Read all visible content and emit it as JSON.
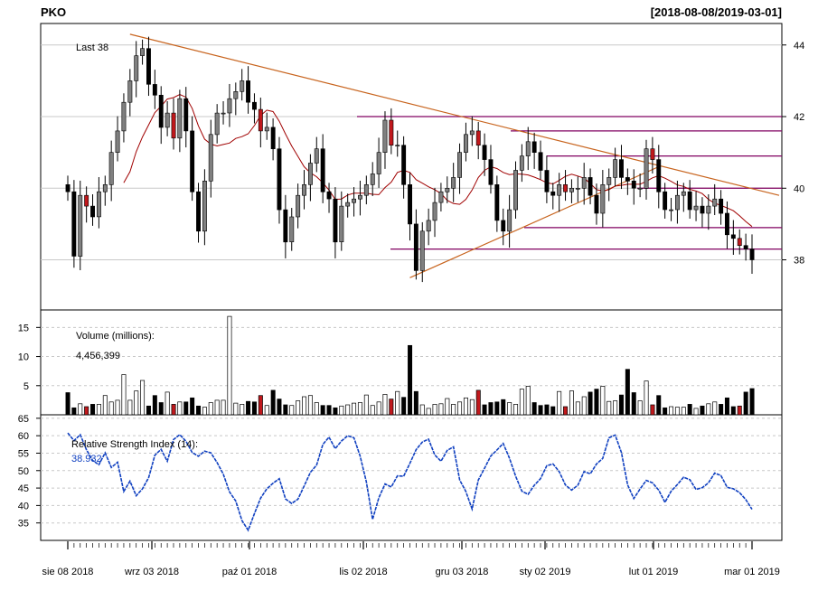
{
  "title": "PKO",
  "date_range": "[2018-08-08/2019-03-01]",
  "price_panel": {
    "last_label": "Last 38",
    "y_ticks": [
      38,
      40,
      42,
      44
    ],
    "ylim": [
      36.6,
      44.6
    ]
  },
  "volume_panel": {
    "label": "Volume (millions):",
    "value": "4,456,399",
    "y_ticks": [
      5,
      10,
      15
    ],
    "ylim": [
      0,
      18
    ]
  },
  "rsi_panel": {
    "label": "Relative Strength Index (14):",
    "value": "38.932",
    "y_ticks": [
      35,
      40,
      45,
      50,
      55,
      60,
      65
    ],
    "ylim": [
      30,
      66
    ]
  },
  "x_ticks": [
    "sie 08 2018",
    "wrz 03 2018",
    "paź 01 2018",
    "lis 02 2018",
    "gru 03 2018",
    "sty 02 2019",
    "lut 01 2019",
    "mar 01 2019"
  ],
  "colors": {
    "up": "#808080",
    "down": "#000000",
    "highlight": "#c0181c",
    "trendline": "#c8641e",
    "hline": "#800060",
    "sma": "#a00000",
    "rsi": "#1040c0",
    "grid": "#c8c8c8"
  },
  "chart_data": {
    "type": "candlestick",
    "series": [
      {
        "name": "price",
        "close": [
          39.9,
          38.1,
          39.8,
          39.5,
          39.2,
          39.9,
          40.1,
          41.0,
          41.6,
          42.4,
          43.0,
          43.7,
          43.9,
          42.9,
          42.6,
          41.7,
          42.1,
          41.4,
          42.5,
          41.6,
          39.9,
          38.8,
          40.2,
          41.5,
          42.1,
          42.1,
          42.5,
          42.7,
          43.0,
          42.4,
          42.2,
          41.6,
          41.7,
          41.1,
          39.4,
          38.5,
          39.2,
          39.8,
          40.1,
          40.7,
          41.1,
          39.9,
          39.7,
          38.5,
          39.5,
          39.6,
          39.7,
          39.8,
          40.1,
          40.4,
          41.0,
          41.9,
          41.2,
          41.2,
          40.1,
          39.0,
          37.7,
          38.8,
          39.1,
          39.6,
          39.9,
          40.0,
          40.3,
          41.0,
          41.5,
          41.6,
          41.2,
          40.8,
          40.1,
          39.1,
          38.8,
          39.4,
          40.5,
          40.9,
          41.3,
          41.0,
          40.5,
          39.9,
          39.8,
          40.1,
          39.9,
          40.0,
          40.0,
          40.3,
          39.8,
          39.3,
          40.1,
          40.3,
          40.8,
          40.3,
          40.2,
          40.0,
          40.0,
          41.1,
          40.8,
          39.9,
          39.4,
          39.4,
          39.8,
          39.9,
          39.4,
          39.5,
          39.3,
          39.5,
          39.7,
          39.3,
          38.7,
          38.6,
          38.4,
          38.3,
          38.0
        ],
        "volume": [
          3.8,
          1.2,
          1.9,
          1.4,
          1.8,
          1.8,
          3.3,
          2.2,
          2.5,
          6.9,
          2.5,
          4.1,
          5.9,
          1.5,
          3.3,
          2.1,
          3.9,
          1.8,
          2.2,
          2.2,
          2.9,
          1.5,
          1.3,
          2.1,
          2.5,
          2.5,
          16.9,
          2.0,
          1.8,
          2.3,
          2.2,
          3.3,
          1.6,
          4.2,
          2.7,
          1.7,
          1.6,
          2.4,
          3.1,
          3.3,
          2.1,
          1.6,
          1.6,
          1.2,
          1.5,
          1.7,
          2.0,
          2.1,
          3.4,
          1.6,
          2.2,
          3.5,
          2.7,
          4.0,
          3.0,
          11.9,
          4.0,
          1.7,
          1.1,
          1.8,
          1.9,
          2.8,
          1.8,
          2.2,
          2.9,
          2.6,
          4.2,
          1.7,
          2.1,
          2.2,
          2.6,
          2.1,
          1.8,
          4.4,
          4.9,
          2.1,
          1.6,
          1.7,
          1.4,
          4.0,
          1.4,
          4.1,
          2.2,
          3.1,
          3.9,
          4.4,
          4.9,
          2.3,
          2.4,
          3.4,
          7.8,
          3.8,
          2.4,
          5.8,
          1.7,
          3.3,
          1.2,
          1.4,
          1.3,
          1.3,
          1.8,
          1.1,
          1.5,
          1.9,
          2.2,
          1.8,
          2.9,
          1.4,
          1.5,
          3.9,
          4.5
        ],
        "rsi": [
          60.8,
          58.6,
          60.3,
          56.0,
          52.9,
          51.7,
          55.1,
          50.9,
          52.4,
          44.0,
          47.0,
          42.8,
          44.8,
          48.0,
          54.4,
          56.1,
          52.7,
          58.9,
          60.3,
          58.4,
          55.2,
          54.1,
          55.6,
          55.1,
          52.3,
          49.0,
          43.9,
          41.3,
          35.7,
          32.9,
          37.7,
          42.1,
          44.8,
          46.4,
          47.7,
          41.9,
          40.6,
          41.8,
          45.6,
          49.5,
          51.6,
          57.5,
          59.6,
          56.3,
          58.5,
          60.0,
          59.4,
          54.2,
          46.8,
          36.0,
          42.2,
          46.2,
          45.3,
          48.5,
          48.4,
          52.1,
          56.0,
          58.2,
          59.0,
          54.5,
          52.7,
          55.8,
          56.8,
          47.3,
          44.0,
          39.0,
          47.3,
          50.7,
          54.2,
          55.9,
          57.8,
          53.6,
          48.4,
          44.1,
          43.2,
          45.8,
          47.7,
          51.4,
          51.9,
          49.7,
          45.9,
          44.4,
          45.8,
          49.7,
          49.1,
          51.9,
          53.5,
          59.4,
          60.2,
          55.2,
          45.9,
          42.0,
          44.7,
          47.2,
          46.5,
          44.4,
          40.9,
          44.1,
          46.0,
          48.1,
          47.4,
          44.6,
          45.1,
          46.5,
          49.3,
          48.6,
          45.2,
          44.8,
          43.7,
          41.7,
          38.9
        ]
      }
    ],
    "ylim": [
      36.6,
      44.6
    ]
  }
}
